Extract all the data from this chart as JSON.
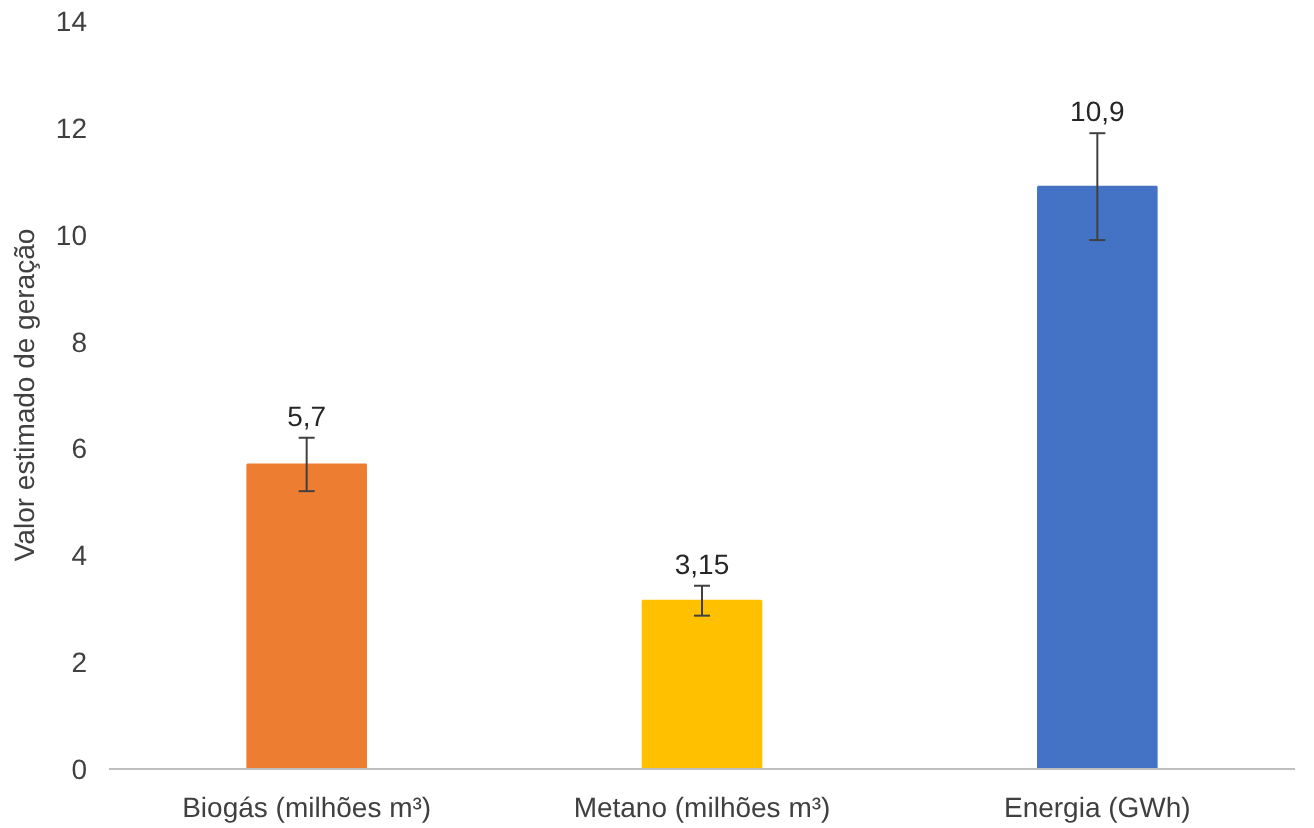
{
  "chart_data": {
    "type": "bar",
    "ylabel": "Valor estimado de geração",
    "categories": [
      "Biogás (milhões m³)",
      "Metano (milhões m³)",
      "Energia (GWh)"
    ],
    "values": [
      5.7,
      3.15,
      10.9
    ],
    "colors": [
      "#ed7d31",
      "#ffc000",
      "#4472c4"
    ],
    "errors": [
      0.5,
      0.28,
      1.0
    ],
    "value_labels": [
      "5,7",
      "3,15",
      "10,9"
    ],
    "ylim": [
      0,
      14
    ],
    "yticks": [
      0,
      2,
      4,
      6,
      8,
      10,
      12,
      14
    ],
    "grid": false
  }
}
